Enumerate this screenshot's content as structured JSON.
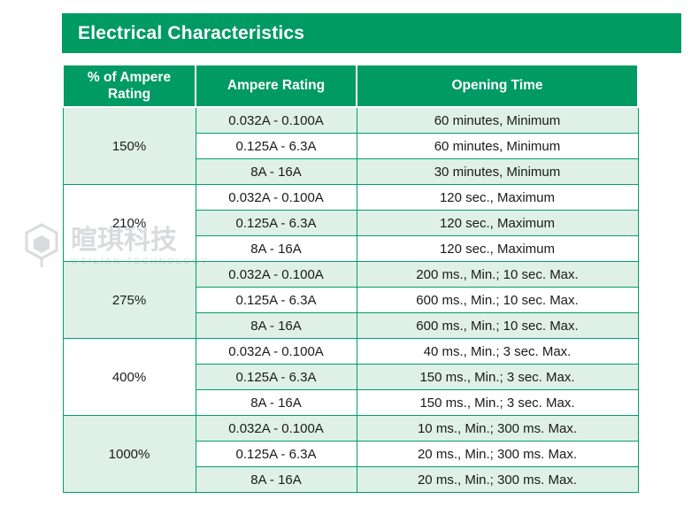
{
  "title": "Electrical Characteristics",
  "colors": {
    "green": "#009A63",
    "row_green": "#DFF0E8",
    "grid": "#00A06B",
    "text": "#1A1A1A"
  },
  "table": {
    "headers": [
      "% of Ampere Rating",
      "Ampere Rating",
      "Opening Time"
    ],
    "groups": [
      {
        "rating": "150%",
        "rows": [
          {
            "ampere_rating": "0.032A - 0.100A",
            "opening_time": "60 minutes, Minimum"
          },
          {
            "ampere_rating": "0.125A - 6.3A",
            "opening_time": "60 minutes, Minimum"
          },
          {
            "ampere_rating": "8A - 16A",
            "opening_time": "30 minutes, Minimum"
          }
        ]
      },
      {
        "rating": "210%",
        "rows": [
          {
            "ampere_rating": "0.032A - 0.100A",
            "opening_time": "120 sec., Maximum"
          },
          {
            "ampere_rating": "0.125A - 6.3A",
            "opening_time": "120 sec., Maximum"
          },
          {
            "ampere_rating": "8A - 16A",
            "opening_time": "120 sec., Maximum"
          }
        ]
      },
      {
        "rating": "275%",
        "rows": [
          {
            "ampere_rating": "0.032A - 0.100A",
            "opening_time": "200 ms., Min.; 10 sec. Max."
          },
          {
            "ampere_rating": "0.125A - 6.3A",
            "opening_time": "600 ms., Min.; 10 sec. Max."
          },
          {
            "ampere_rating": "8A - 16A",
            "opening_time": "600 ms., Min.; 10 sec. Max."
          }
        ]
      },
      {
        "rating": "400%",
        "rows": [
          {
            "ampere_rating": "0.032A - 0.100A",
            "opening_time": "40 ms., Min.; 3 sec. Max."
          },
          {
            "ampere_rating": "0.125A - 6.3A",
            "opening_time": "150 ms., Min.; 3 sec. Max."
          },
          {
            "ampere_rating": "8A - 16A",
            "opening_time": "150 ms., Min.; 3 sec. Max."
          }
        ]
      },
      {
        "rating": "1000%",
        "rows": [
          {
            "ampere_rating": "0.032A - 0.100A",
            "opening_time": "10 ms., Min.; 300 ms. Max."
          },
          {
            "ampere_rating": "0.125A - 6.3A",
            "opening_time": "20 ms., Min.; 300 ms. Max."
          },
          {
            "ampere_rating": "8A - 16A",
            "opening_time": "20 ms., Min.; 300 ms. Max."
          }
        ]
      }
    ]
  },
  "watermark": {
    "text_cn": "暄琪科技",
    "text_en": "WEILIAN TECHNOLOGY"
  }
}
